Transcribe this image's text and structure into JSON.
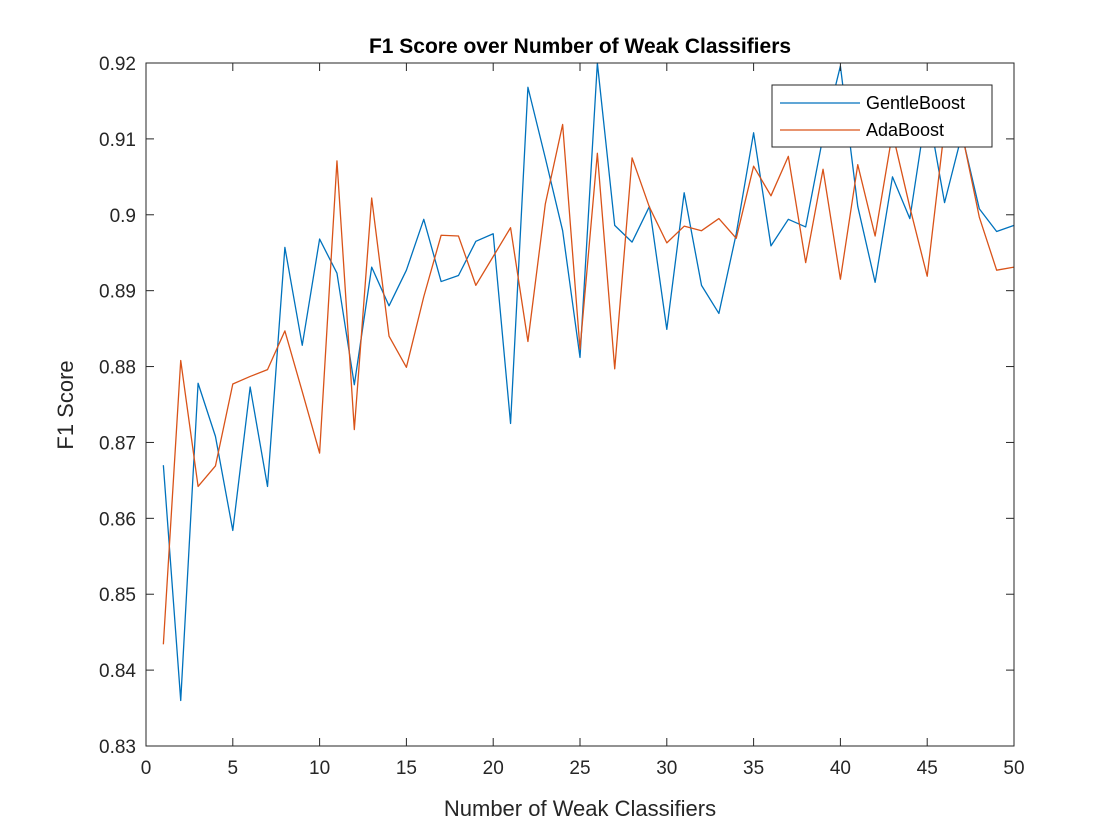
{
  "chart_data": {
    "type": "line",
    "title": "F1 Score over Number of Weak Classifiers",
    "xlabel": "Number of Weak Classifiers",
    "ylabel": "F1 Score",
    "xlim": [
      0,
      50
    ],
    "ylim": [
      0.83,
      0.92
    ],
    "xticks": [
      0,
      5,
      10,
      15,
      20,
      25,
      30,
      35,
      40,
      45,
      50
    ],
    "xtick_labels": [
      "0",
      "5",
      "10",
      "15",
      "20",
      "25",
      "30",
      "35",
      "40",
      "45",
      "50"
    ],
    "yticks": [
      0.83,
      0.84,
      0.85,
      0.86,
      0.87,
      0.88,
      0.89,
      0.9,
      0.91,
      0.92
    ],
    "ytick_labels": [
      "0.83",
      "0.84",
      "0.85",
      "0.86",
      "0.87",
      "0.88",
      "0.89",
      "0.9",
      "0.91",
      "0.92"
    ],
    "grid": false,
    "legend_position": "top-right",
    "x": [
      1,
      2,
      3,
      4,
      5,
      6,
      7,
      8,
      9,
      10,
      11,
      12,
      13,
      14,
      15,
      16,
      17,
      18,
      19,
      20,
      21,
      22,
      23,
      24,
      25,
      26,
      27,
      28,
      29,
      30,
      31,
      32,
      33,
      34,
      35,
      36,
      37,
      38,
      39,
      40,
      41,
      42,
      43,
      44,
      45,
      46,
      47,
      48,
      49,
      50
    ],
    "series": [
      {
        "name": "GentleBoost",
        "color": "#0072BD",
        "values": [
          0.867,
          0.836,
          0.8778,
          0.8708,
          0.8584,
          0.8773,
          0.8642,
          0.8957,
          0.8828,
          0.8968,
          0.8923,
          0.8776,
          0.8931,
          0.888,
          0.8927,
          0.8994,
          0.8912,
          0.892,
          0.8965,
          0.8975,
          0.8725,
          0.9168,
          0.9075,
          0.8979,
          0.8812,
          0.92,
          0.8986,
          0.8964,
          0.9011,
          0.8849,
          0.9029,
          0.8907,
          0.887,
          0.8975,
          0.9108,
          0.8959,
          0.8994,
          0.8984,
          0.9103,
          0.9196,
          0.9011,
          0.8911,
          0.905,
          0.8995,
          0.9145,
          0.9016,
          0.9106,
          0.9008,
          0.8978,
          0.8986
        ]
      },
      {
        "name": "AdaBoost",
        "color": "#D95319",
        "values": [
          0.8434,
          0.8808,
          0.8642,
          0.8669,
          0.8777,
          0.8787,
          0.8796,
          0.8847,
          0.8767,
          0.8686,
          0.9071,
          0.8717,
          0.9022,
          0.884,
          0.8799,
          0.8892,
          0.8973,
          0.8972,
          0.8907,
          0.8945,
          0.8983,
          0.8833,
          0.9014,
          0.9119,
          0.8823,
          0.9081,
          0.8797,
          0.9075,
          0.901,
          0.8963,
          0.8985,
          0.8979,
          0.8995,
          0.8969,
          0.9064,
          0.9025,
          0.9077,
          0.8937,
          0.906,
          0.8915,
          0.9066,
          0.8972,
          0.9108,
          0.901,
          0.8919,
          0.9115,
          0.9108,
          0.8997,
          0.8927,
          0.8931
        ]
      }
    ]
  }
}
